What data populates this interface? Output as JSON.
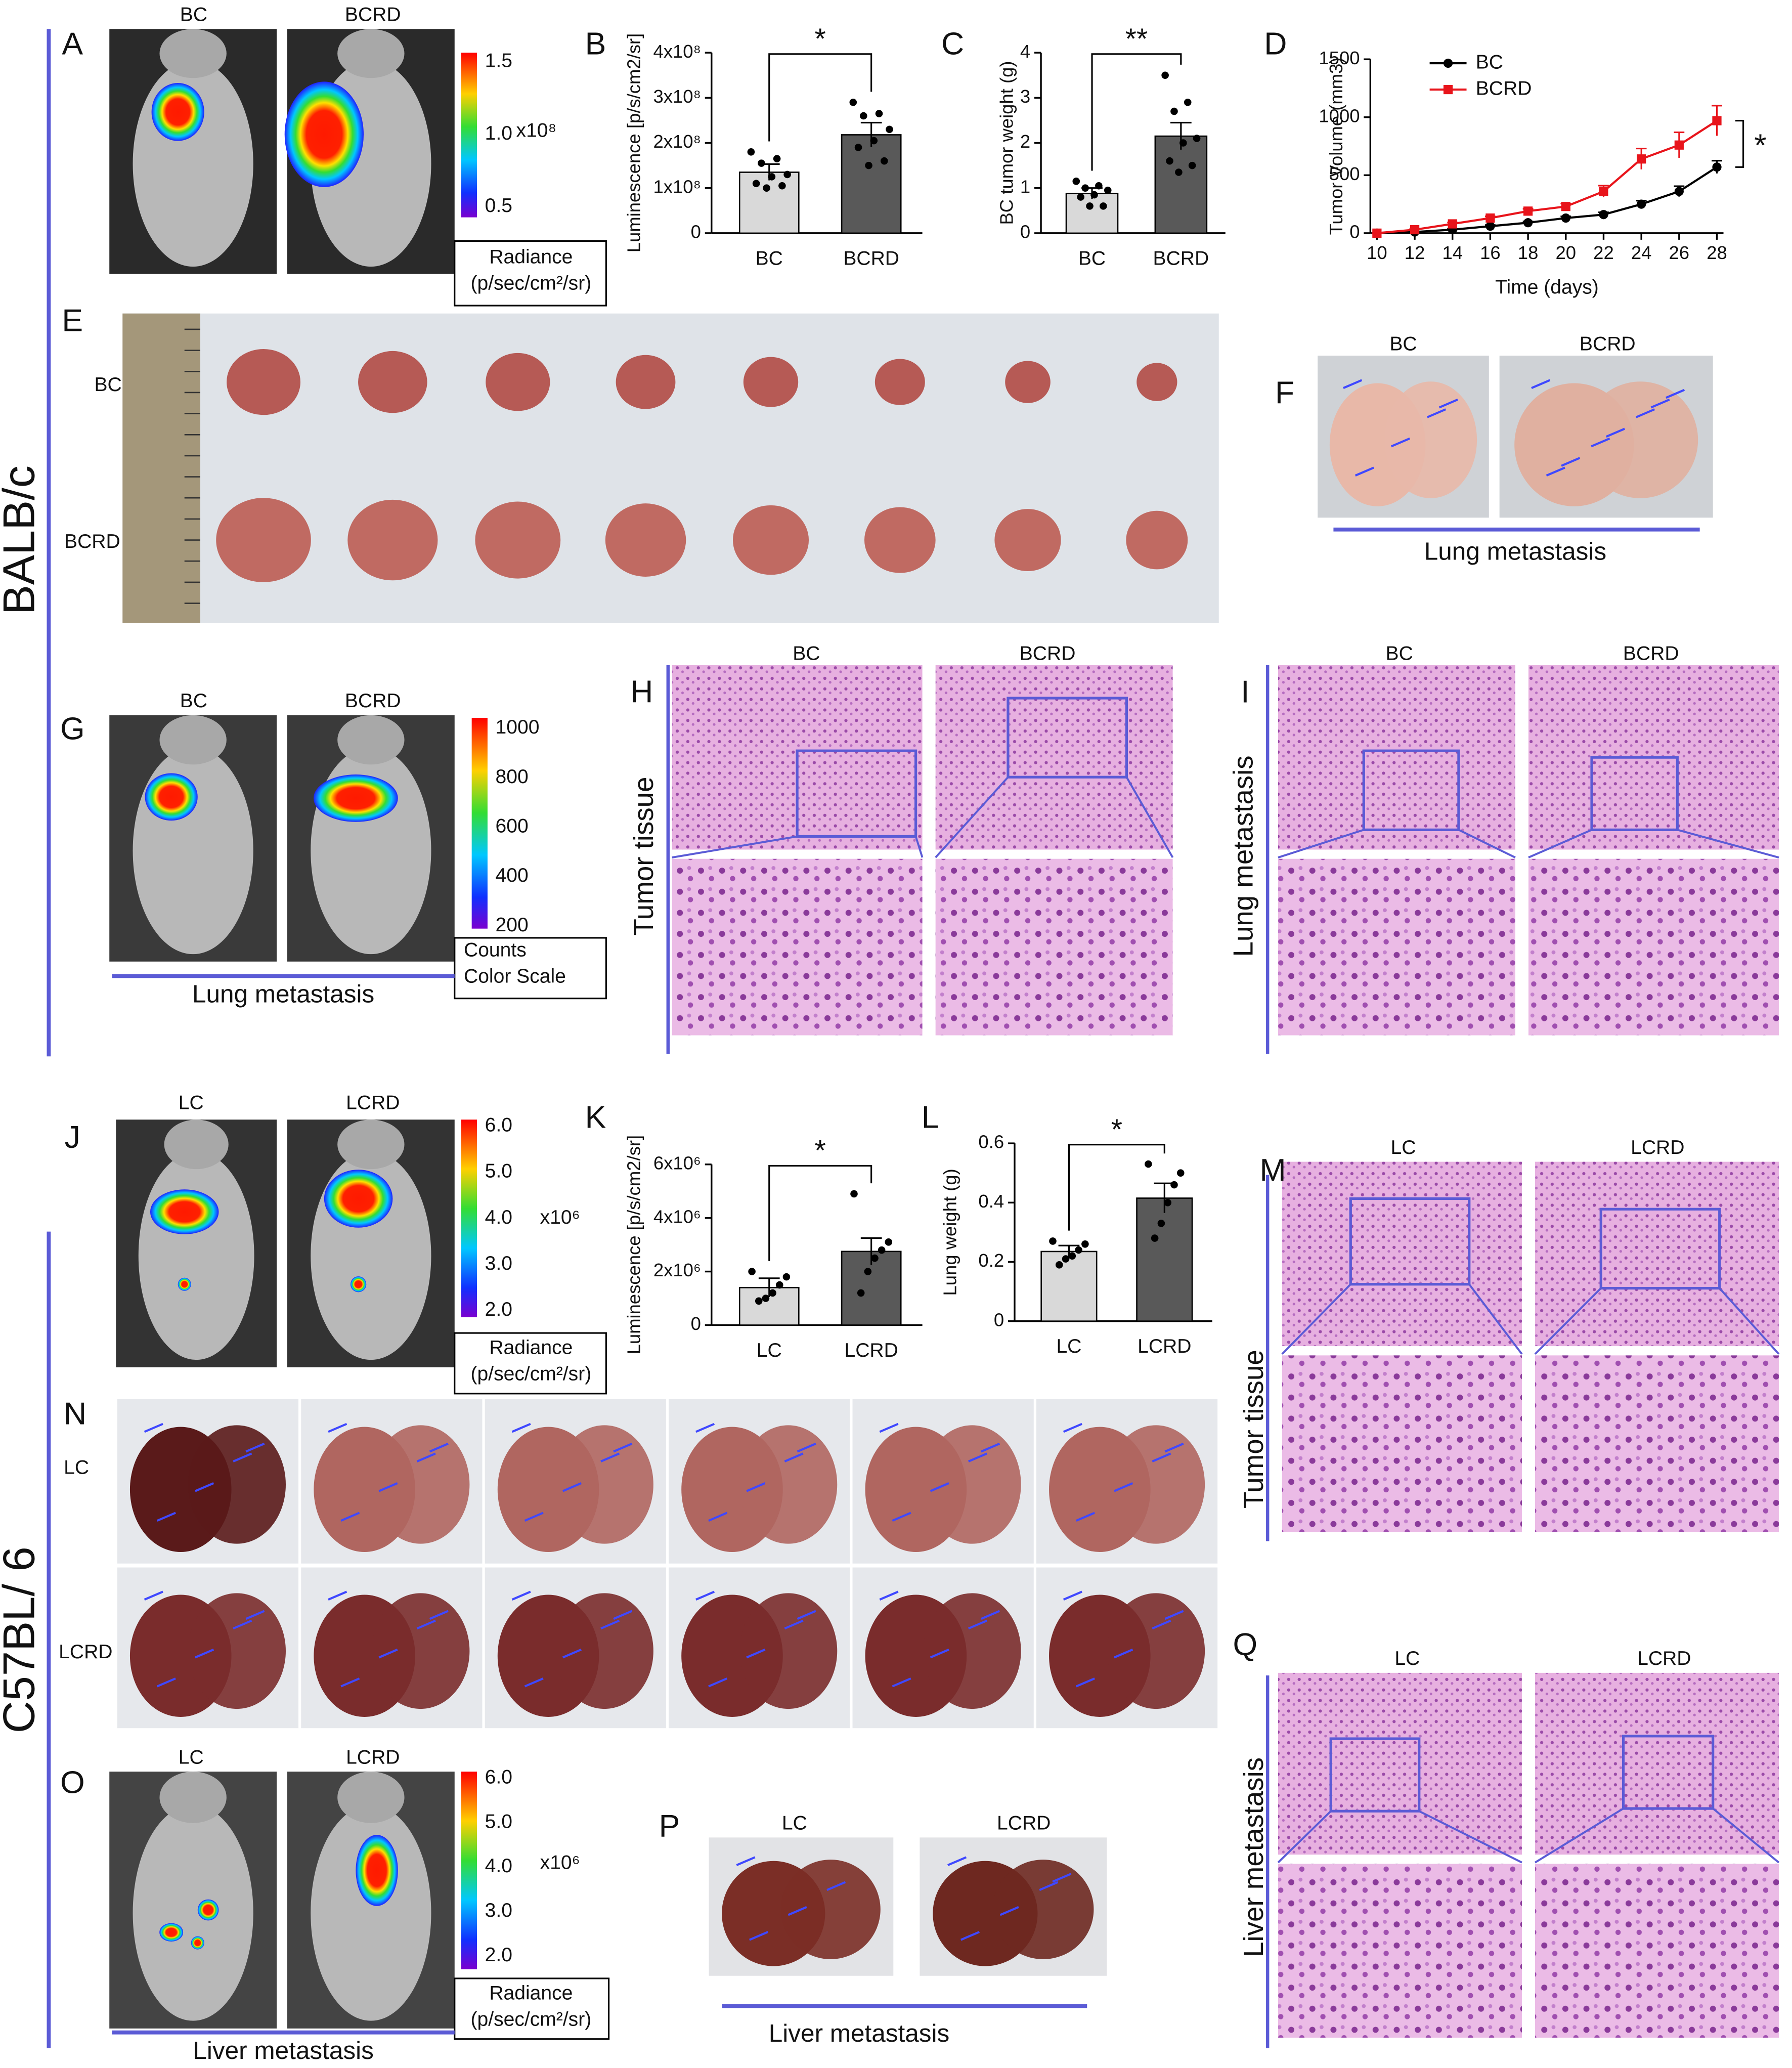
{
  "chart_data": [
    {
      "type": "bar",
      "ylabel": "Luminescence  [p/s/cm2/sr]",
      "categories": [
        "BC",
        "BCRD"
      ],
      "values": [
        135000000,
        218000000
      ],
      "errors": [
        18000000,
        27000000
      ],
      "points": [
        [
          180000000,
          165000000,
          155000000,
          130000000,
          125000000,
          110000000,
          105000000,
          100000000
        ],
        [
          290000000,
          265000000,
          260000000,
          230000000,
          205000000,
          190000000,
          160000000,
          150000000
        ]
      ],
      "colors": [
        "#d9d9d9",
        "#595959"
      ],
      "ylim": [
        0,
        400000000
      ],
      "yticks": [
        0,
        {
          "value": 100000000,
          "label": "1x10⁸"
        },
        {
          "value": 200000000,
          "label": "2x10⁸"
        },
        {
          "value": 300000000,
          "label": "3x10⁸"
        },
        {
          "value": 400000000,
          "label": "4x10⁸"
        }
      ],
      "significance": "*"
    },
    {
      "type": "bar",
      "ylabel": "BC tumor weight (g)",
      "categories": [
        "BC",
        "BCRD"
      ],
      "values": [
        0.88,
        2.15
      ],
      "errors": [
        0.12,
        0.3
      ],
      "points": [
        [
          1.15,
          1.05,
          1.0,
          0.95,
          0.85,
          0.8,
          0.6,
          0.6
        ],
        [
          3.5,
          2.9,
          2.7,
          2.1,
          2.0,
          1.6,
          1.5,
          1.35
        ]
      ],
      "colors": [
        "#d9d9d9",
        "#595959"
      ],
      "ylim": [
        0,
        4
      ],
      "yticks": [
        0,
        1,
        2,
        3,
        4
      ],
      "significance": "**"
    },
    {
      "type": "line",
      "xlabel": "Time (days)",
      "ylabel": "Tumor Volume (mm3)",
      "x": [
        10,
        12,
        14,
        16,
        18,
        20,
        22,
        24,
        26,
        28
      ],
      "series": [
        {
          "name": "BC",
          "color": "#000000",
          "marker": "circle",
          "values": [
            0,
            10,
            30,
            60,
            90,
            130,
            160,
            250,
            360,
            570
          ],
          "errors": [
            0,
            5,
            8,
            10,
            12,
            15,
            20,
            30,
            45,
            55
          ]
        },
        {
          "name": "BCRD",
          "color": "#e8141b",
          "marker": "square",
          "values": [
            0,
            30,
            80,
            130,
            190,
            230,
            360,
            640,
            760,
            970
          ],
          "errors": [
            0,
            8,
            12,
            15,
            20,
            25,
            50,
            90,
            110,
            130
          ]
        }
      ],
      "xlim": [
        10,
        28
      ],
      "xticks": [
        10,
        12,
        14,
        16,
        18,
        20,
        22,
        24,
        26,
        28
      ],
      "ylim": [
        0,
        1500
      ],
      "yticks": [
        0,
        500,
        1000,
        1500
      ],
      "legend": "upper left",
      "significance": "*"
    },
    {
      "type": "bar",
      "ylabel": "Luminescence  [p/s/cm2/sr]",
      "categories": [
        "LC",
        "LCRD"
      ],
      "values": [
        1400000,
        2750000
      ],
      "errors": [
        350000,
        500000
      ],
      "points": [
        [
          2000000,
          1800000,
          1500000,
          1200000,
          1000000,
          900000
        ],
        [
          4900000,
          3100000,
          2800000,
          2500000,
          2000000,
          1200000
        ]
      ],
      "colors": [
        "#d9d9d9",
        "#595959"
      ],
      "ylim": [
        0,
        6000000
      ],
      "yticks": [
        0,
        {
          "value": 2000000,
          "label": "2x10⁶"
        },
        {
          "value": 4000000,
          "label": "4x10⁶"
        },
        {
          "value": 6000000,
          "label": "6x10⁶"
        }
      ],
      "significance": "*"
    },
    {
      "type": "bar",
      "ylabel": "Lung weight (g)",
      "categories": [
        "LC",
        "LCRD"
      ],
      "values": [
        0.235,
        0.415
      ],
      "errors": [
        0.02,
        0.05
      ],
      "points": [
        [
          0.27,
          0.26,
          0.24,
          0.22,
          0.21,
          0.19
        ],
        [
          0.53,
          0.5,
          0.46,
          0.4,
          0.33,
          0.28
        ]
      ],
      "colors": [
        "#d9d9d9",
        "#595959"
      ],
      "ylim": [
        0,
        0.6
      ],
      "yticks": [
        0,
        0.2,
        0.4,
        0.6
      ],
      "significance": "*"
    }
  ],
  "figure": {
    "panel_letters": [
      "A",
      "B",
      "C",
      "D",
      "E",
      "F",
      "G",
      "H",
      "I",
      "J",
      "K",
      "L",
      "M",
      "N",
      "O",
      "P",
      "Q"
    ],
    "groups": [
      "BALB/c",
      "C57BL/ 6"
    ],
    "image_labels": [
      "BC",
      "BCRD",
      "BC",
      "BCRD",
      "BC",
      "BCRD",
      "BC",
      "BCRD",
      "BC",
      "BCRD",
      "LC",
      "LCRD",
      "LC",
      "LCRD",
      "LC",
      "LCRD",
      "LC",
      "LCRD",
      "LC",
      "LCRD"
    ],
    "row_labels": [
      "BC",
      "BCRD",
      "LC",
      "LCRD"
    ],
    "colorbars": [
      {
        "ticks": [
          "1.5",
          "1.0",
          "0.5"
        ],
        "multiplier": "x10⁸",
        "caption": [
          "Radiance",
          "(p/sec/cm²/sr)"
        ]
      },
      {
        "ticks": [
          "1000",
          "800",
          "600",
          "400",
          "200"
        ],
        "caption": [
          "Counts",
          "Color Scale"
        ]
      },
      {
        "ticks": [
          "6.0",
          "5.0",
          "4.0",
          "3.0",
          "2.0"
        ],
        "multiplier": "x10⁶",
        "caption": [
          "Radiance",
          "(p/sec/cm²/sr)"
        ]
      },
      {
        "ticks": [
          "6.0",
          "5.0",
          "4.0",
          "3.0",
          "2.0"
        ],
        "multiplier": "x10⁶",
        "caption": [
          "Radiance",
          "(p/sec/cm²/sr)"
        ]
      }
    ],
    "captions": [
      "Lung metastasis",
      "Lung metastasis",
      "Tumor tissue",
      "Lung metastasis",
      "Tumor tissue",
      "Liver metastasis",
      "Liver metastasis",
      "Liver metastasis"
    ]
  }
}
